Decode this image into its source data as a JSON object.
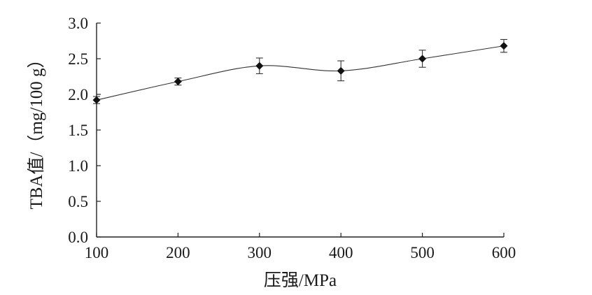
{
  "chart_data": {
    "type": "line",
    "title": "",
    "xlabel": "压强/MPa",
    "ylabel": "TBA值/（mg/100 g）",
    "x": [
      100,
      200,
      300,
      400,
      500,
      600
    ],
    "xticks": [
      "100",
      "200",
      "300",
      "400",
      "500",
      "600"
    ],
    "yticks": [
      "0.0",
      "0.5",
      "1.0",
      "1.5",
      "2.0",
      "2.5",
      "3.0"
    ],
    "xlim": [
      100,
      600
    ],
    "ylim": [
      0,
      3.0
    ],
    "grid": false,
    "legend": "none",
    "series": [
      {
        "values": [
          1.92,
          2.18,
          2.4,
          2.33,
          2.5,
          2.68
        ],
        "errors": [
          0.05,
          0.05,
          0.11,
          0.14,
          0.12,
          0.09
        ],
        "color": "#333333",
        "marker": "diamond",
        "smooth": true
      }
    ]
  }
}
